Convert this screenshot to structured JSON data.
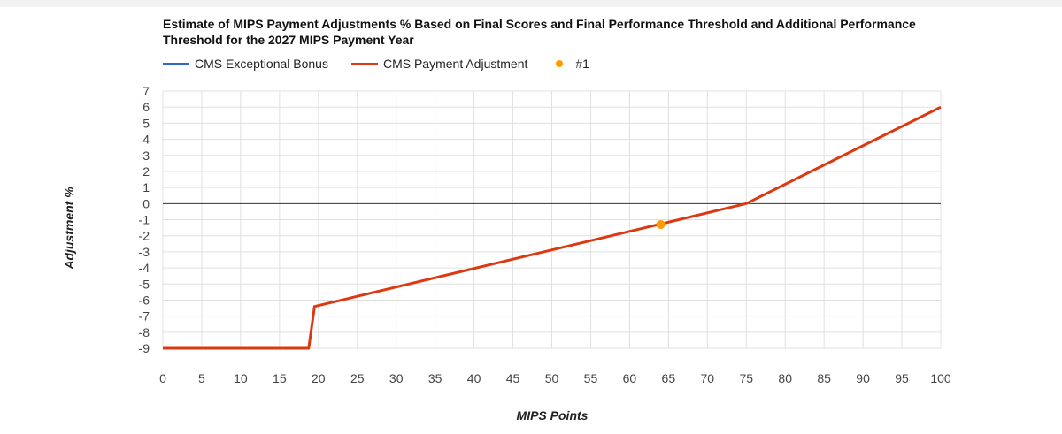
{
  "chart_data": {
    "type": "line",
    "title": "Estimate of MIPS Payment Adjustments % Based on Final Scores and Final Performance Threshold and Additional Performance Threshold for the 2027 MIPS Payment Year",
    "xlabel": "MIPS Points",
    "ylabel": "Adjustment %",
    "xlim": [
      0,
      100
    ],
    "ylim": [
      -9,
      7
    ],
    "x_ticks": [
      0,
      5,
      10,
      15,
      20,
      25,
      30,
      35,
      40,
      45,
      50,
      55,
      60,
      65,
      70,
      75,
      80,
      85,
      90,
      95,
      100
    ],
    "y_ticks": [
      7,
      6,
      5,
      4,
      3,
      2,
      1,
      0,
      -1,
      -2,
      -3,
      -4,
      -5,
      -6,
      -7,
      -8,
      -9
    ],
    "grid": true,
    "legend_position": "top-left",
    "series": [
      {
        "name": "CMS Exceptional Bonus",
        "color": "#3366cc",
        "type": "line",
        "points": []
      },
      {
        "name": "CMS Payment Adjustment",
        "color": "#dc3912",
        "type": "line",
        "points": [
          [
            0,
            -9
          ],
          [
            18.75,
            -9
          ],
          [
            19.5,
            -6.4
          ],
          [
            75,
            0
          ],
          [
            100,
            6
          ]
        ]
      },
      {
        "name": "#1",
        "color": "#ff9900",
        "type": "point",
        "points": [
          [
            64,
            -1.3
          ]
        ]
      }
    ]
  }
}
